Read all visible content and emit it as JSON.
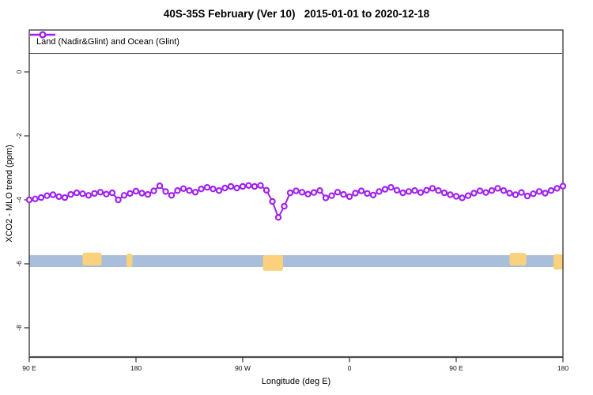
{
  "title": "40S-35S February (Ver 10)   2015-01-01 to 2020-12-18",
  "legend": {
    "label": "Land (Nadir&Glint) and Ocean (Glint)",
    "marker": "open-circle",
    "marker_color": "#a020f0"
  },
  "colors": {
    "series_purple": "#a020f0",
    "ocean_band_blue": "#a9bedb",
    "land_orange": "#fbd17b",
    "axis": "#333333"
  },
  "chart_data": {
    "type": "line",
    "title": "40S-35S February (Ver 10)   2015-01-01 to 2020-12-18",
    "xlabel": "Longitude (deg E)",
    "ylabel": "XCO2 - MLO trend (ppm)",
    "xlim": [
      90,
      540
    ],
    "ylim": [
      -8.915,
      1.309
    ],
    "grid": false,
    "legend_position": "top",
    "x_ticks": [
      {
        "lon": 90,
        "label": "90 E"
      },
      {
        "lon": 180,
        "label": "180"
      },
      {
        "lon": 270,
        "label": "90 W"
      },
      {
        "lon": 360,
        "label": "0"
      },
      {
        "lon": 450,
        "label": "90 E"
      },
      {
        "lon": 540,
        "label": "180"
      }
    ],
    "y_ticks": [
      {
        "value": 0,
        "label": "0"
      },
      {
        "value": -2,
        "label": "-2"
      },
      {
        "value": -4,
        "label": "-4"
      },
      {
        "value": -6,
        "label": "-6"
      },
      {
        "value": -8,
        "label": "-8"
      }
    ],
    "series": [
      {
        "name": "Land (Nadir&Glint) and Ocean (Glint)",
        "color": "#a020f0",
        "marker": "open-circle",
        "x": [
          90,
          95,
          100,
          105,
          110,
          115,
          120,
          125,
          130,
          135,
          140,
          145,
          150,
          155,
          160,
          165,
          170,
          175,
          180,
          185,
          190,
          195,
          200,
          205,
          210,
          215,
          220,
          225,
          230,
          235,
          240,
          245,
          250,
          255,
          260,
          265,
          270,
          275,
          280,
          285,
          290,
          295,
          300,
          305,
          310,
          315,
          320,
          325,
          330,
          335,
          340,
          345,
          350,
          355,
          360,
          365,
          370,
          375,
          380,
          385,
          390,
          395,
          400,
          405,
          410,
          415,
          420,
          425,
          430,
          435,
          440,
          445,
          450,
          455,
          460,
          465,
          470,
          475,
          480,
          485,
          490,
          495,
          500,
          505,
          510,
          515,
          520,
          525,
          530,
          535,
          540
        ],
        "values": [
          -4.0,
          -3.97,
          -3.93,
          -3.87,
          -3.84,
          -3.9,
          -3.93,
          -3.83,
          -3.78,
          -3.81,
          -3.86,
          -3.8,
          -3.76,
          -3.82,
          -3.78,
          -4.0,
          -3.86,
          -3.8,
          -3.73,
          -3.79,
          -3.83,
          -3.72,
          -3.56,
          -3.74,
          -3.86,
          -3.71,
          -3.65,
          -3.71,
          -3.76,
          -3.66,
          -3.61,
          -3.66,
          -3.71,
          -3.63,
          -3.58,
          -3.63,
          -3.58,
          -3.55,
          -3.58,
          -3.55,
          -3.7,
          -4.05,
          -4.55,
          -4.2,
          -3.78,
          -3.72,
          -3.76,
          -3.82,
          -3.77,
          -3.71,
          -3.94,
          -3.87,
          -3.76,
          -3.83,
          -3.9,
          -3.79,
          -3.72,
          -3.8,
          -3.85,
          -3.74,
          -3.67,
          -3.61,
          -3.7,
          -3.78,
          -3.74,
          -3.71,
          -3.77,
          -3.7,
          -3.64,
          -3.71,
          -3.78,
          -3.84,
          -3.89,
          -3.94,
          -3.87,
          -3.79,
          -3.72,
          -3.77,
          -3.71,
          -3.64,
          -3.71,
          -3.79,
          -3.84,
          -3.77,
          -3.88,
          -3.81,
          -3.74,
          -3.79,
          -3.71,
          -3.64,
          -3.57
        ]
      }
    ],
    "ocean_band": {
      "color": "#a9bedb",
      "lon_start": 90,
      "lon_end": 540,
      "v_top": -5.73,
      "v_bottom": -6.1
    },
    "land_segments": {
      "color": "#fbd17b",
      "segments": [
        {
          "name": "australia",
          "lon_start": 135,
          "lon_end": 151,
          "v_top": -5.65,
          "v_bottom": -6.05
        },
        {
          "name": "new-zealand",
          "lon_start": 172,
          "lon_end": 177,
          "v_top": -5.68,
          "v_bottom": -6.1
        },
        {
          "name": "south-america",
          "lon_start": 287,
          "lon_end": 304,
          "v_top": -5.73,
          "v_bottom": -6.22
        },
        {
          "name": "australia-2",
          "lon_start": 495,
          "lon_end": 509,
          "v_top": -5.66,
          "v_bottom": -6.05
        },
        {
          "name": "new-zealand-2",
          "lon_start": 532,
          "lon_end": 540,
          "v_top": -5.7,
          "v_bottom": -6.18
        }
      ]
    }
  }
}
